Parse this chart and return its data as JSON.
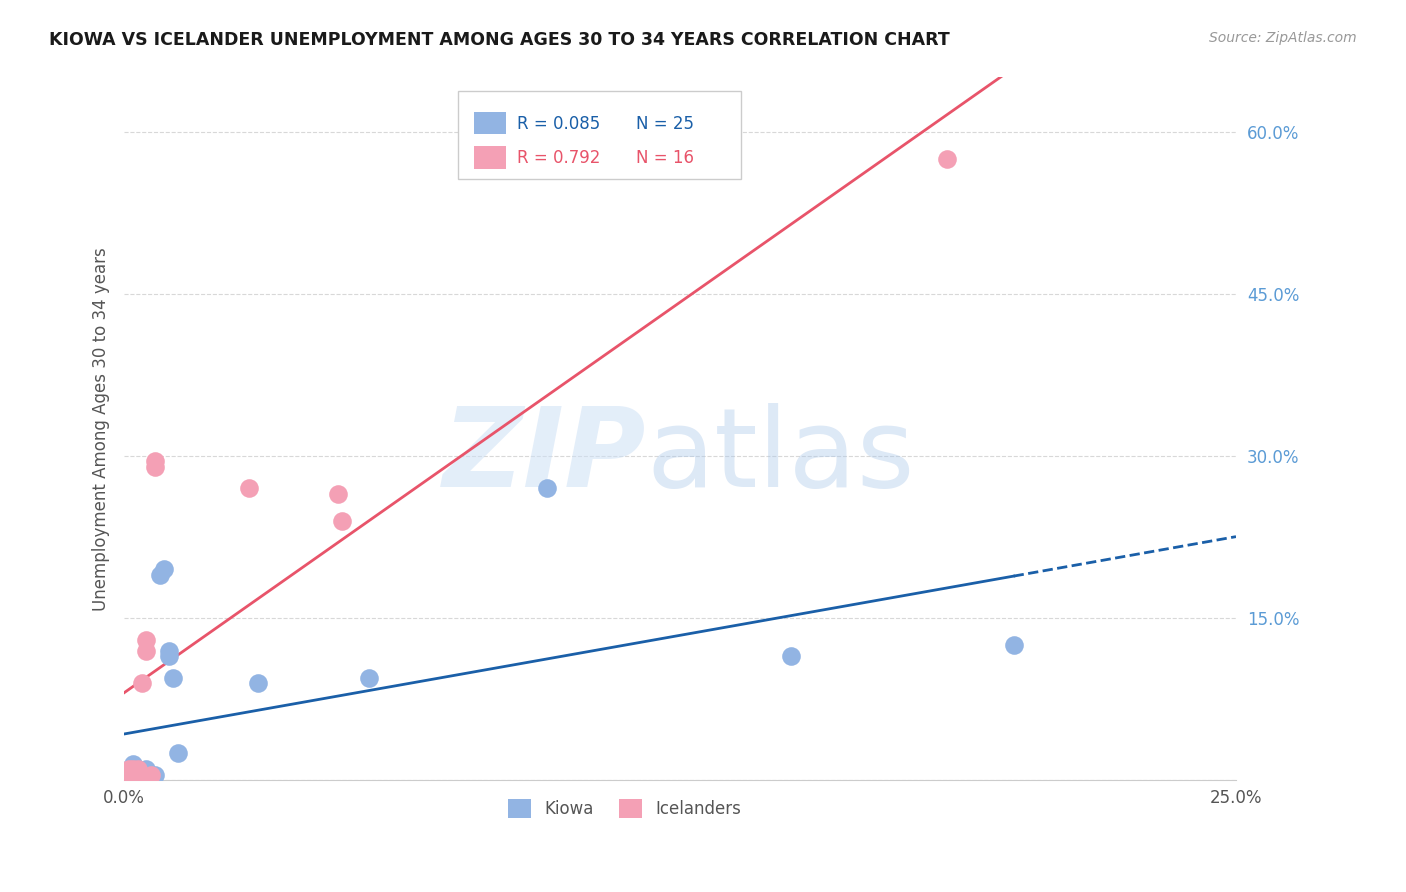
{
  "title": "KIOWA VS ICELANDER UNEMPLOYMENT AMONG AGES 30 TO 34 YEARS CORRELATION CHART",
  "source": "Source: ZipAtlas.com",
  "ylabel": "Unemployment Among Ages 30 to 34 years",
  "xlim": [
    0.0,
    0.25
  ],
  "ylim": [
    0.0,
    0.65
  ],
  "kiowa_color": "#92b4e3",
  "icelander_color": "#f4a0b5",
  "kiowa_line_color": "#1a5fa8",
  "icelander_line_color": "#e8546a",
  "background_color": "#ffffff",
  "grid_color": "#d8d8d8",
  "kiowa_x": [
    0.001,
    0.001,
    0.002,
    0.002,
    0.003,
    0.003,
    0.003,
    0.004,
    0.004,
    0.005,
    0.005,
    0.005,
    0.006,
    0.007,
    0.008,
    0.009,
    0.01,
    0.01,
    0.011,
    0.012,
    0.03,
    0.055,
    0.095,
    0.15,
    0.2
  ],
  "kiowa_y": [
    0.005,
    0.01,
    0.005,
    0.015,
    0.005,
    0.008,
    0.01,
    0.005,
    0.008,
    0.005,
    0.008,
    0.01,
    0.005,
    0.005,
    0.19,
    0.195,
    0.115,
    0.12,
    0.095,
    0.025,
    0.09,
    0.095,
    0.27,
    0.115,
    0.125
  ],
  "icelander_x": [
    0.001,
    0.001,
    0.002,
    0.002,
    0.003,
    0.003,
    0.004,
    0.005,
    0.005,
    0.006,
    0.007,
    0.007,
    0.028,
    0.048,
    0.049,
    0.185
  ],
  "icelander_y": [
    0.005,
    0.01,
    0.005,
    0.01,
    0.005,
    0.01,
    0.09,
    0.12,
    0.13,
    0.005,
    0.29,
    0.295,
    0.27,
    0.265,
    0.24,
    0.575
  ],
  "kiowa_R": "R = 0.085",
  "kiowa_N": "N = 25",
  "icelander_R": "R = 0.792",
  "icelander_N": "N = 16"
}
